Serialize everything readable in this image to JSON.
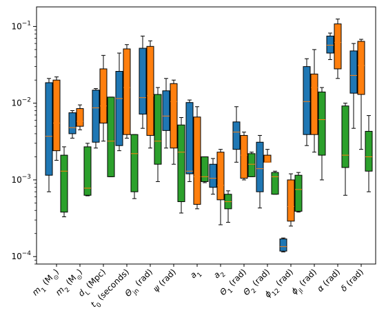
{
  "chart_data": {
    "type": "box",
    "title": "",
    "xlabel": "",
    "ylabel": "",
    "yscale": "log",
    "ylim": [
      8e-05,
      0.18
    ],
    "ytick_labels": [
      "10^{-4}",
      "10^{-3}",
      "10^{-2}",
      "10^{-1}"
    ],
    "categories": [
      "m₁ (M⊙)",
      "m₂ (M⊙)",
      "d_L (Mpc)",
      "t₀ (seconds)",
      "Θ_jn (rad)",
      "ψ (rad)",
      "a₁",
      "a₂",
      "Θ₁ (rad)",
      "Θ₂ (rad)",
      "ϕ₁₂ (rad)",
      "ϕ_jl (rad)",
      "α (rad)",
      "δ (rad)"
    ],
    "series": [
      {
        "color": "#1f77b4",
        "boxes": [
          [
            0.0007,
            0.00115,
            0.0037,
            0.0185,
            0.021
          ],
          [
            0.0035,
            0.004,
            0.0048,
            0.0075,
            0.008
          ],
          [
            0.0026,
            0.0031,
            0.0087,
            0.0148,
            0.0155
          ],
          [
            0.0024,
            0.0028,
            0.0115,
            0.026,
            0.045
          ],
          [
            0.0047,
            0.0072,
            0.0118,
            0.052,
            0.075
          ],
          [
            0.0026,
            0.0044,
            0.0068,
            0.0145,
            0.021
          ],
          [
            0.00095,
            0.0012,
            0.0013,
            0.0102,
            0.011
          ],
          [
            0.00065,
            0.0008,
            0.00105,
            0.0016,
            0.0019
          ],
          [
            0.0017,
            0.0025,
            0.0042,
            0.0057,
            0.009
          ],
          [
            0.00043,
            0.0007,
            0.0014,
            0.0031,
            0.0038
          ],
          [
            0.000115,
            0.000118,
            0.000135,
            0.00017,
            0.000175
          ],
          [
            0.0028,
            0.0039,
            0.0105,
            0.03,
            0.038
          ],
          [
            0.037,
            0.045,
            0.057,
            0.075,
            0.082
          ],
          [
            0.0047,
            0.0135,
            0.023,
            0.048,
            0.06
          ]
        ]
      },
      {
        "color": "#ff7f0e",
        "boxes": [
          [
            0.0018,
            0.0024,
            0.0055,
            0.02,
            0.022
          ],
          [
            0.0045,
            0.005,
            0.0058,
            0.0085,
            0.0095
          ],
          [
            0.0032,
            0.0055,
            0.0092,
            0.028,
            0.042
          ],
          [
            0.0035,
            0.0039,
            0.016,
            0.051,
            0.058
          ],
          [
            0.0026,
            0.0038,
            0.0125,
            0.055,
            0.065
          ],
          [
            0.0016,
            0.0026,
            0.0105,
            0.018,
            0.02
          ],
          [
            0.00042,
            0.00048,
            0.0011,
            0.0066,
            0.009
          ],
          [
            0.00026,
            0.00055,
            0.00085,
            0.0023,
            0.0025
          ],
          [
            0.001,
            0.00105,
            0.0021,
            0.0038,
            0.0042
          ],
          [
            0.0017,
            0.0017,
            0.0017,
            0.0021,
            0.0025
          ],
          [
            0.00025,
            0.00029,
            0.00045,
            0.001,
            0.0012
          ],
          [
            0.0023,
            0.0039,
            0.016,
            0.024,
            0.05
          ],
          [
            0.021,
            0.028,
            0.062,
            0.108,
            0.125
          ],
          [
            0.0025,
            0.013,
            0.031,
            0.064,
            0.068
          ]
        ]
      },
      {
        "color": "#2ca02c",
        "boxes": [
          [
            0.00033,
            0.00038,
            0.0013,
            0.0021,
            0.0027
          ],
          [
            0.00062,
            0.00063,
            0.00078,
            0.0027,
            0.003
          ],
          [
            0.0011,
            0.0011,
            0.0032,
            0.012,
            0.012
          ],
          [
            0.00057,
            0.0007,
            0.0022,
            0.0039,
            0.0039
          ],
          [
            0.00095,
            0.0016,
            0.0032,
            0.013,
            0.016
          ],
          [
            0.00037,
            0.00052,
            0.0023,
            0.0052,
            0.0065
          ],
          [
            0.00092,
            0.00095,
            0.0011,
            0.002,
            0.002
          ],
          [
            0.00028,
            0.00042,
            0.00052,
            0.00065,
            0.00072
          ],
          [
            0.0011,
            0.0011,
            0.0016,
            0.0022,
            0.0023
          ],
          [
            0.00065,
            0.00065,
            0.0011,
            0.00125,
            0.0013
          ],
          [
            0.00038,
            0.00039,
            0.00075,
            0.00115,
            0.00125
          ],
          [
            0.001,
            0.0021,
            0.0061,
            0.014,
            0.016
          ],
          [
            0.00063,
            0.00145,
            0.0021,
            0.0092,
            0.01
          ],
          [
            0.0007,
            0.0013,
            0.002,
            0.0043,
            0.0069
          ]
        ]
      }
    ],
    "grid": false,
    "legend": "none"
  }
}
